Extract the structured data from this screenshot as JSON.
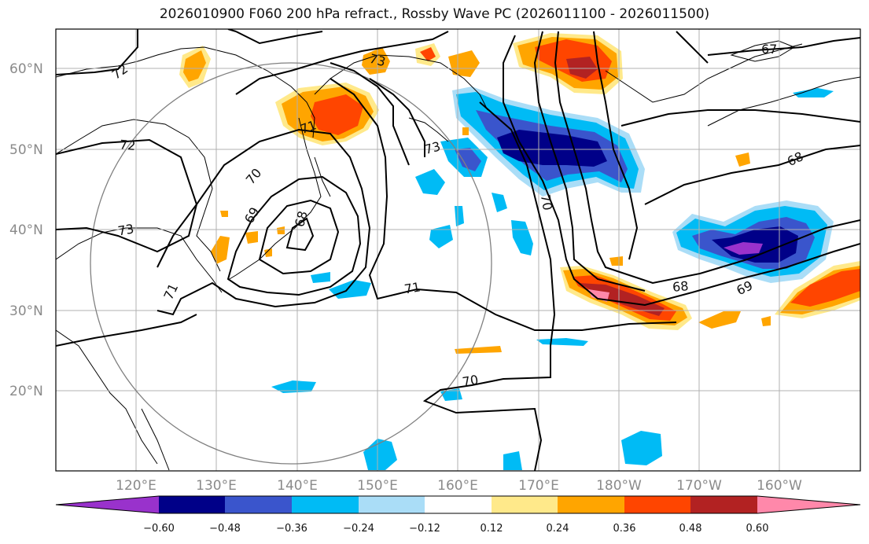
{
  "title": "2026010900 F060 200 hPa refract., Rossby Wave PC (2026011100 - 2026011500)",
  "map": {
    "lat_ticks": [
      "60°N",
      "50°N",
      "40°N",
      "30°N",
      "20°N"
    ],
    "lon_ticks": [
      "120°E",
      "130°E",
      "140°E",
      "150°E",
      "160°E",
      "170°E",
      "180°W",
      "170°W",
      "160°W"
    ],
    "contour_labels": [
      "72",
      "73",
      "73",
      "71",
      "72",
      "70",
      "69",
      "68",
      "73",
      "71",
      "71",
      "70",
      "70",
      "68",
      "69",
      "68",
      "67"
    ]
  },
  "colorbar": {
    "tick_labels": [
      "−0.60",
      "−0.48",
      "−0.36",
      "−0.24",
      "−0.12",
      "0.12",
      "0.24",
      "0.36",
      "0.48",
      "0.60"
    ],
    "colors": [
      "#9932cc",
      "#000088",
      "#3a55cc",
      "#00bbf5",
      "#aaddf7",
      "#ffffff",
      "#ffe98a",
      "#ffa500",
      "#ff4500",
      "#b22222",
      "#ff88aa"
    ]
  }
}
